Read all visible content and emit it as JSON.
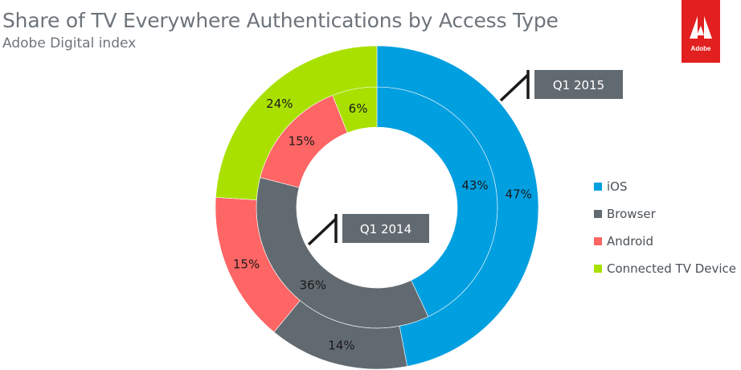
{
  "chart_data": {
    "type": "pie",
    "title": "Share of TV Everywhere Authentications by Access Type",
    "subtitle": "Adobe Digital index",
    "categories": [
      "iOS",
      "Browser",
      "Android",
      "Connected TV Device"
    ],
    "colors": {
      "iOS": "#009fe0",
      "Browser": "#626a71",
      "Android": "#fe6565",
      "Connected TV Device": "#a9e000"
    },
    "series": [
      {
        "name": "Q1 2014",
        "ring": "inner",
        "values": [
          43,
          36,
          15,
          6
        ]
      },
      {
        "name": "Q1 2015",
        "ring": "outer",
        "values": [
          47,
          14,
          15,
          24
        ]
      }
    ],
    "value_suffix": "%",
    "legend_position": "right"
  },
  "brand": {
    "logo_icon": "adobe-logo-icon",
    "logo_text": "Adobe"
  }
}
